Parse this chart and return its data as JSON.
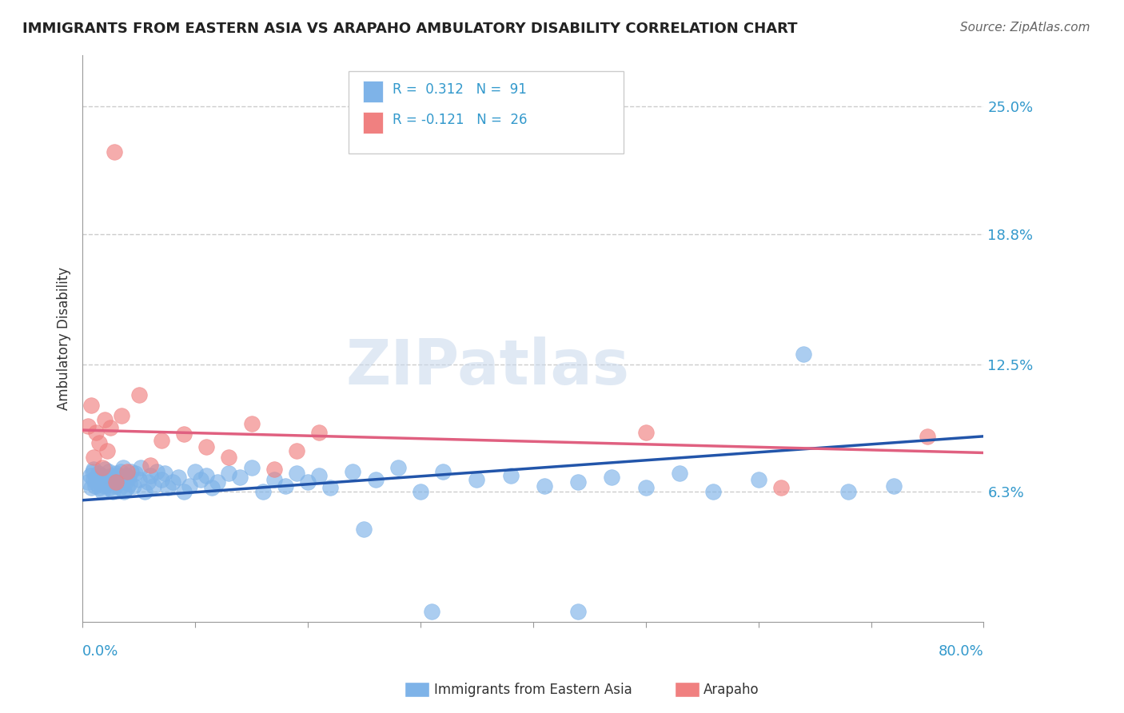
{
  "title": "IMMIGRANTS FROM EASTERN ASIA VS ARAPAHO AMBULATORY DISABILITY CORRELATION CHART",
  "source": "Source: ZipAtlas.com",
  "ylabel": "Ambulatory Disability",
  "yticks": [
    "6.3%",
    "12.5%",
    "18.8%",
    "25.0%"
  ],
  "ytick_values": [
    0.063,
    0.125,
    0.188,
    0.25
  ],
  "xlim": [
    0.0,
    0.8
  ],
  "ylim": [
    0.0,
    0.275
  ],
  "blue_color": "#7EB3E8",
  "pink_color": "#F08080",
  "blue_line_color": "#2255AA",
  "pink_line_color": "#E06080",
  "blue_trend_x": [
    0.0,
    0.8
  ],
  "blue_trend_y": [
    0.059,
    0.09
  ],
  "pink_trend_x": [
    0.0,
    0.8
  ],
  "pink_trend_y": [
    0.093,
    0.082
  ],
  "blue_scatter_x": [
    0.005,
    0.007,
    0.008,
    0.009,
    0.01,
    0.01,
    0.011,
    0.012,
    0.013,
    0.014,
    0.015,
    0.016,
    0.017,
    0.018,
    0.019,
    0.02,
    0.02,
    0.021,
    0.022,
    0.023,
    0.024,
    0.025,
    0.026,
    0.027,
    0.028,
    0.029,
    0.03,
    0.031,
    0.032,
    0.033,
    0.034,
    0.035,
    0.036,
    0.037,
    0.038,
    0.039,
    0.04,
    0.041,
    0.042,
    0.043,
    0.045,
    0.047,
    0.05,
    0.052,
    0.055,
    0.058,
    0.06,
    0.063,
    0.066,
    0.07,
    0.073,
    0.076,
    0.08,
    0.085,
    0.09,
    0.095,
    0.1,
    0.105,
    0.11,
    0.115,
    0.12,
    0.13,
    0.14,
    0.15,
    0.16,
    0.17,
    0.18,
    0.19,
    0.2,
    0.21,
    0.22,
    0.24,
    0.26,
    0.28,
    0.3,
    0.32,
    0.35,
    0.38,
    0.41,
    0.44,
    0.47,
    0.5,
    0.53,
    0.56,
    0.6,
    0.64,
    0.68,
    0.72,
    0.44,
    0.25,
    0.31
  ],
  "blue_scatter_y": [
    0.068,
    0.071,
    0.065,
    0.073,
    0.069,
    0.074,
    0.066,
    0.07,
    0.067,
    0.072,
    0.065,
    0.068,
    0.071,
    0.063,
    0.069,
    0.074,
    0.066,
    0.07,
    0.067,
    0.073,
    0.065,
    0.068,
    0.071,
    0.063,
    0.069,
    0.066,
    0.072,
    0.068,
    0.071,
    0.065,
    0.073,
    0.069,
    0.075,
    0.063,
    0.068,
    0.071,
    0.065,
    0.07,
    0.067,
    0.073,
    0.066,
    0.072,
    0.069,
    0.075,
    0.063,
    0.068,
    0.071,
    0.066,
    0.073,
    0.069,
    0.072,
    0.065,
    0.068,
    0.07,
    0.063,
    0.066,
    0.073,
    0.069,
    0.071,
    0.065,
    0.068,
    0.072,
    0.07,
    0.075,
    0.063,
    0.069,
    0.066,
    0.072,
    0.068,
    0.071,
    0.065,
    0.073,
    0.069,
    0.075,
    0.063,
    0.073,
    0.069,
    0.071,
    0.066,
    0.068,
    0.07,
    0.065,
    0.072,
    0.063,
    0.069,
    0.13,
    0.063,
    0.066,
    0.005,
    0.045,
    0.005
  ],
  "pink_scatter_x": [
    0.005,
    0.008,
    0.01,
    0.012,
    0.015,
    0.018,
    0.02,
    0.022,
    0.025,
    0.028,
    0.03,
    0.035,
    0.04,
    0.05,
    0.06,
    0.07,
    0.09,
    0.11,
    0.13,
    0.15,
    0.17,
    0.19,
    0.21,
    0.5,
    0.62,
    0.75
  ],
  "pink_scatter_y": [
    0.095,
    0.105,
    0.08,
    0.092,
    0.087,
    0.075,
    0.098,
    0.083,
    0.094,
    0.228,
    0.068,
    0.1,
    0.073,
    0.11,
    0.076,
    0.088,
    0.091,
    0.085,
    0.08,
    0.096,
    0.074,
    0.083,
    0.092,
    0.092,
    0.065,
    0.09
  ]
}
